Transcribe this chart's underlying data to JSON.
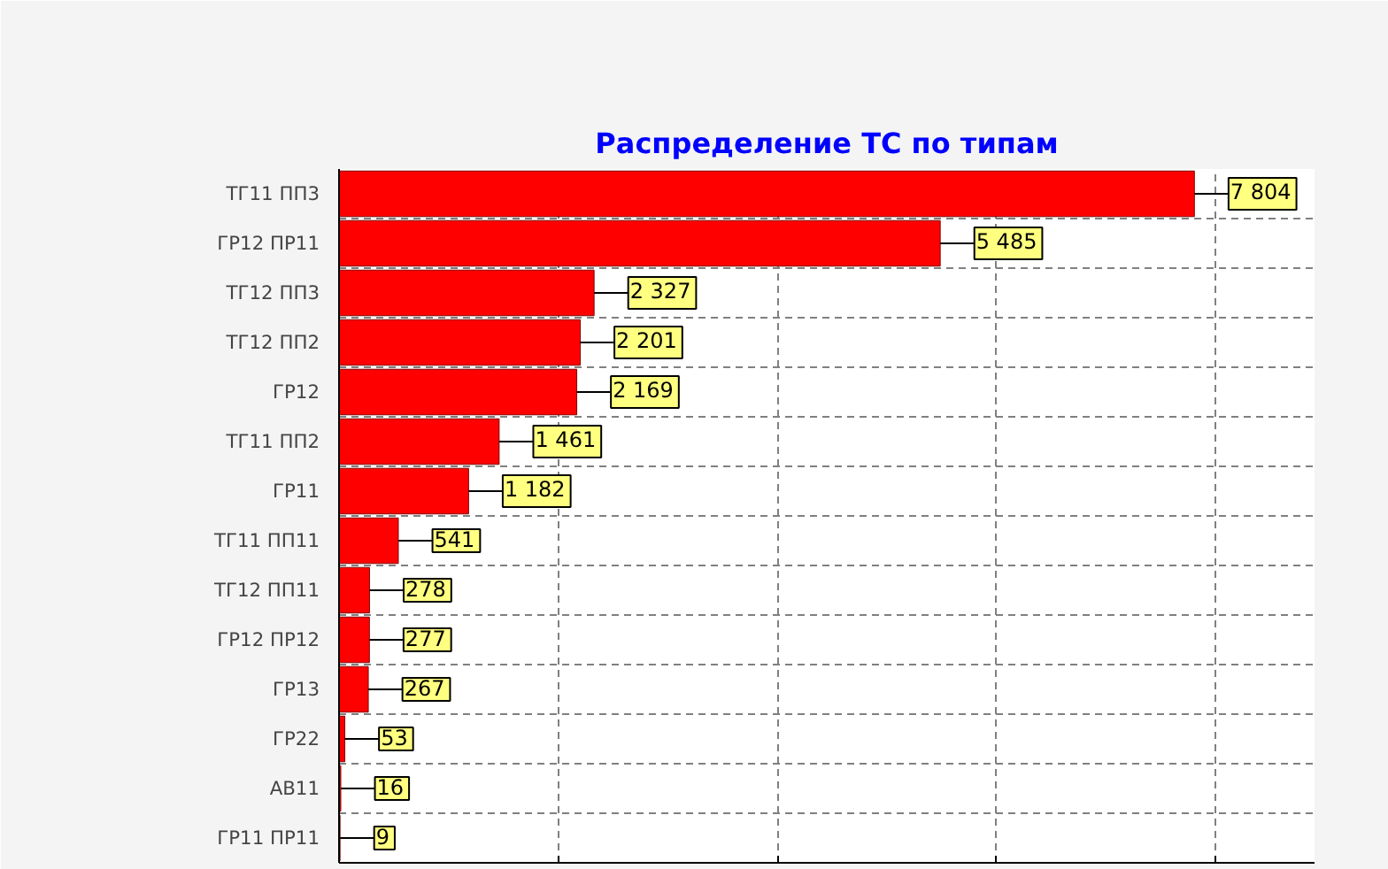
{
  "chart_data": {
    "type": "bar",
    "orientation": "horizontal",
    "title": "Распределение ТС по типам",
    "categories": [
      "ТГ11 ПП3",
      "ГР12 ПР11",
      "ТГ12 ПП3",
      "ТГ12 ПП2",
      "ГР12",
      "ТГ11 ПП2",
      "ГР11",
      "ТГ11 ПП11",
      "ТГ12 ПП11",
      "ГР12 ПР12",
      "ГР13",
      "ГР22",
      "АВ11",
      "ГР11 ПР11"
    ],
    "values": [
      7804,
      5485,
      2327,
      2201,
      2169,
      1461,
      1182,
      541,
      278,
      277,
      267,
      53,
      16,
      9
    ],
    "value_labels": [
      "7 804",
      "5 485",
      "2 327",
      "2 201",
      "2 169",
      "1 461",
      "1 182",
      "541",
      "278",
      "277",
      "267",
      "53",
      "16",
      "9"
    ],
    "color": "#ff0000",
    "xlim": [
      0,
      8900
    ],
    "xticks": [
      {
        "value": 0,
        "label": null
      },
      {
        "value": 2000,
        "label": null
      },
      {
        "value": 4000,
        "label": null
      },
      {
        "value": 6000,
        "label": null
      },
      {
        "value": 8000,
        "label": null
      }
    ],
    "tick_labels": "y",
    "grid": true
  }
}
